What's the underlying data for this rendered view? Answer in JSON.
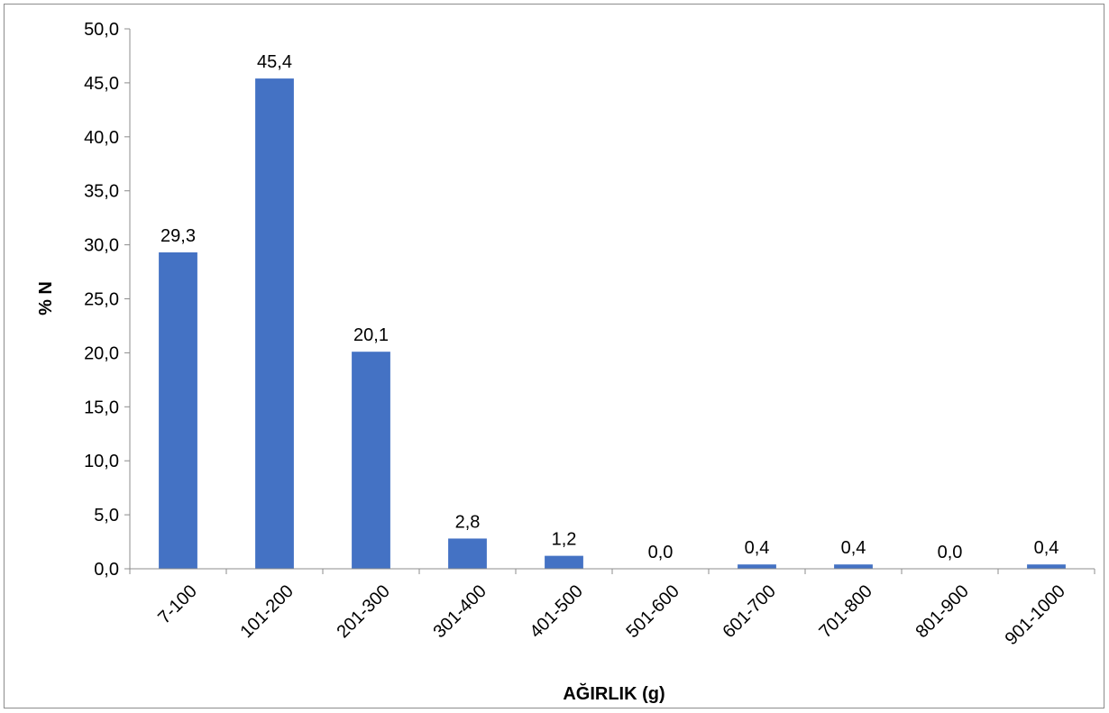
{
  "chart_data": {
    "type": "bar",
    "title": "",
    "xlabel": "AĞIRLIK (g)",
    "ylabel": "% N",
    "categories": [
      "7-100",
      "101-200",
      "201-300",
      "301-400",
      "401-500",
      "501-600",
      "601-700",
      "701-800",
      "801-900",
      "901-1000"
    ],
    "values": [
      29.3,
      45.4,
      20.1,
      2.8,
      1.2,
      0.0,
      0.4,
      0.4,
      0.0,
      0.4
    ],
    "data_labels": [
      "29,3",
      "45,4",
      "20,1",
      "2,8",
      "1,2",
      "0,0",
      "0,4",
      "0,4",
      "0,0",
      "0,4"
    ],
    "ylim": [
      0,
      50
    ],
    "y_ticks": [
      "0,0",
      "5,0",
      "10,0",
      "15,0",
      "20,0",
      "25,0",
      "30,0",
      "35,0",
      "40,0",
      "45,0",
      "50,0"
    ],
    "grid": false,
    "legend": "none",
    "bar_color": "#4472C4"
  }
}
